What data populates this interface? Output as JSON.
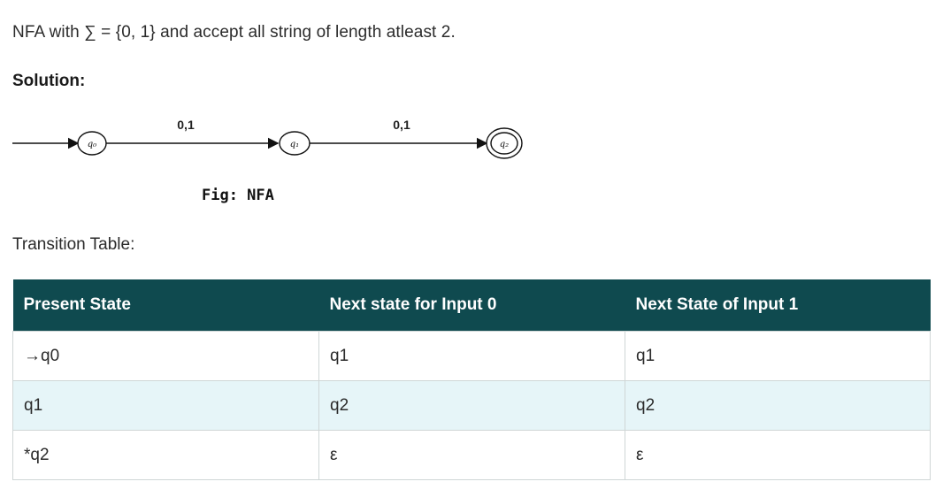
{
  "problem_text": "NFA with ∑ = {0, 1} and accept all string of length atleast 2.",
  "solution_label": "Solution:",
  "diagram": {
    "states": [
      "q₀",
      "q₁",
      "q₂"
    ],
    "transitions": [
      "0,1",
      "0,1"
    ],
    "caption": "Fig: NFA"
  },
  "transition_table_label": "Transition Table:",
  "table": {
    "headers": [
      "Present State",
      "Next state for Input 0",
      "Next State of Input 1"
    ],
    "rows": [
      [
        "→q0",
        "q1",
        "q1"
      ],
      [
        "q1",
        "q2",
        "q2"
      ],
      [
        "*q2",
        "ε",
        "ε"
      ]
    ]
  },
  "colors": {
    "header_bg": "#0f4a4f",
    "alt_row_bg": "#e6f5f8"
  }
}
